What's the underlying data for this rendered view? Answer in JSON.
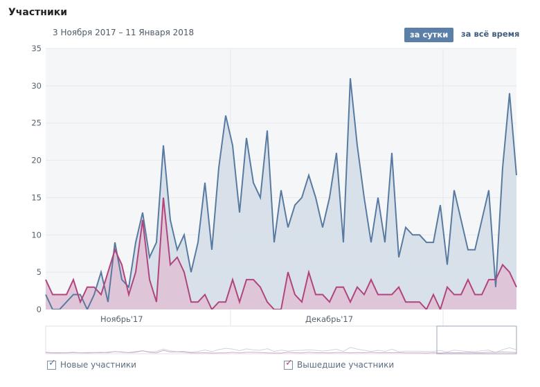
{
  "title": "Участники",
  "date_range": "3 Ноября 2017 – 11 Января 2018",
  "buttons": {
    "per_day": "за сутки",
    "all_time": "за всё время"
  },
  "legend": {
    "new": "Новые участники",
    "left": "Вышедшие участники"
  },
  "colors": {
    "new": "#587aa0",
    "new_fill": "#d2dde8",
    "left": "#b0457e",
    "left_fill": "#e0c2d6",
    "grid": "#e7e8ec",
    "plot_bg": "#f5f6f8"
  },
  "chart_data": {
    "type": "area",
    "title": "Участники",
    "xlabel": "",
    "ylabel": "",
    "x_tick_labels": [
      "Ноябрь'17",
      "Декабрь'17"
    ],
    "ylim": [
      0,
      35
    ],
    "yticks": [
      0,
      5,
      10,
      15,
      20,
      25,
      30,
      35
    ],
    "series": [
      {
        "name": "Новые участники",
        "values": [
          2,
          0,
          0,
          1,
          2,
          2,
          0,
          2,
          5,
          1,
          9,
          4,
          3,
          9,
          13,
          7,
          9,
          22,
          12,
          8,
          10,
          5,
          9,
          17,
          8,
          19,
          26,
          22,
          13,
          23,
          17,
          15,
          24,
          9,
          16,
          11,
          14,
          15,
          18,
          15,
          11,
          15,
          21,
          9,
          31,
          22,
          15,
          9,
          15,
          9,
          21,
          7,
          11,
          10,
          10,
          9,
          9,
          14,
          6,
          16,
          12,
          8,
          8,
          12,
          16,
          3,
          19,
          29,
          18
        ]
      },
      {
        "name": "Вышедшие участники",
        "values": [
          4,
          2,
          2,
          2,
          4,
          1,
          3,
          3,
          2,
          5,
          8,
          6,
          2,
          5,
          12,
          4,
          1,
          15,
          6,
          7,
          5,
          1,
          1,
          2,
          0,
          1,
          1,
          4,
          1,
          4,
          4,
          3,
          1,
          0,
          0,
          5,
          2,
          1,
          5,
          2,
          2,
          1,
          3,
          3,
          1,
          3,
          2,
          4,
          2,
          2,
          2,
          3,
          1,
          1,
          1,
          0,
          2,
          0,
          3,
          2,
          2,
          4,
          2,
          2,
          4,
          4,
          6,
          5,
          3
        ]
      }
    ]
  }
}
